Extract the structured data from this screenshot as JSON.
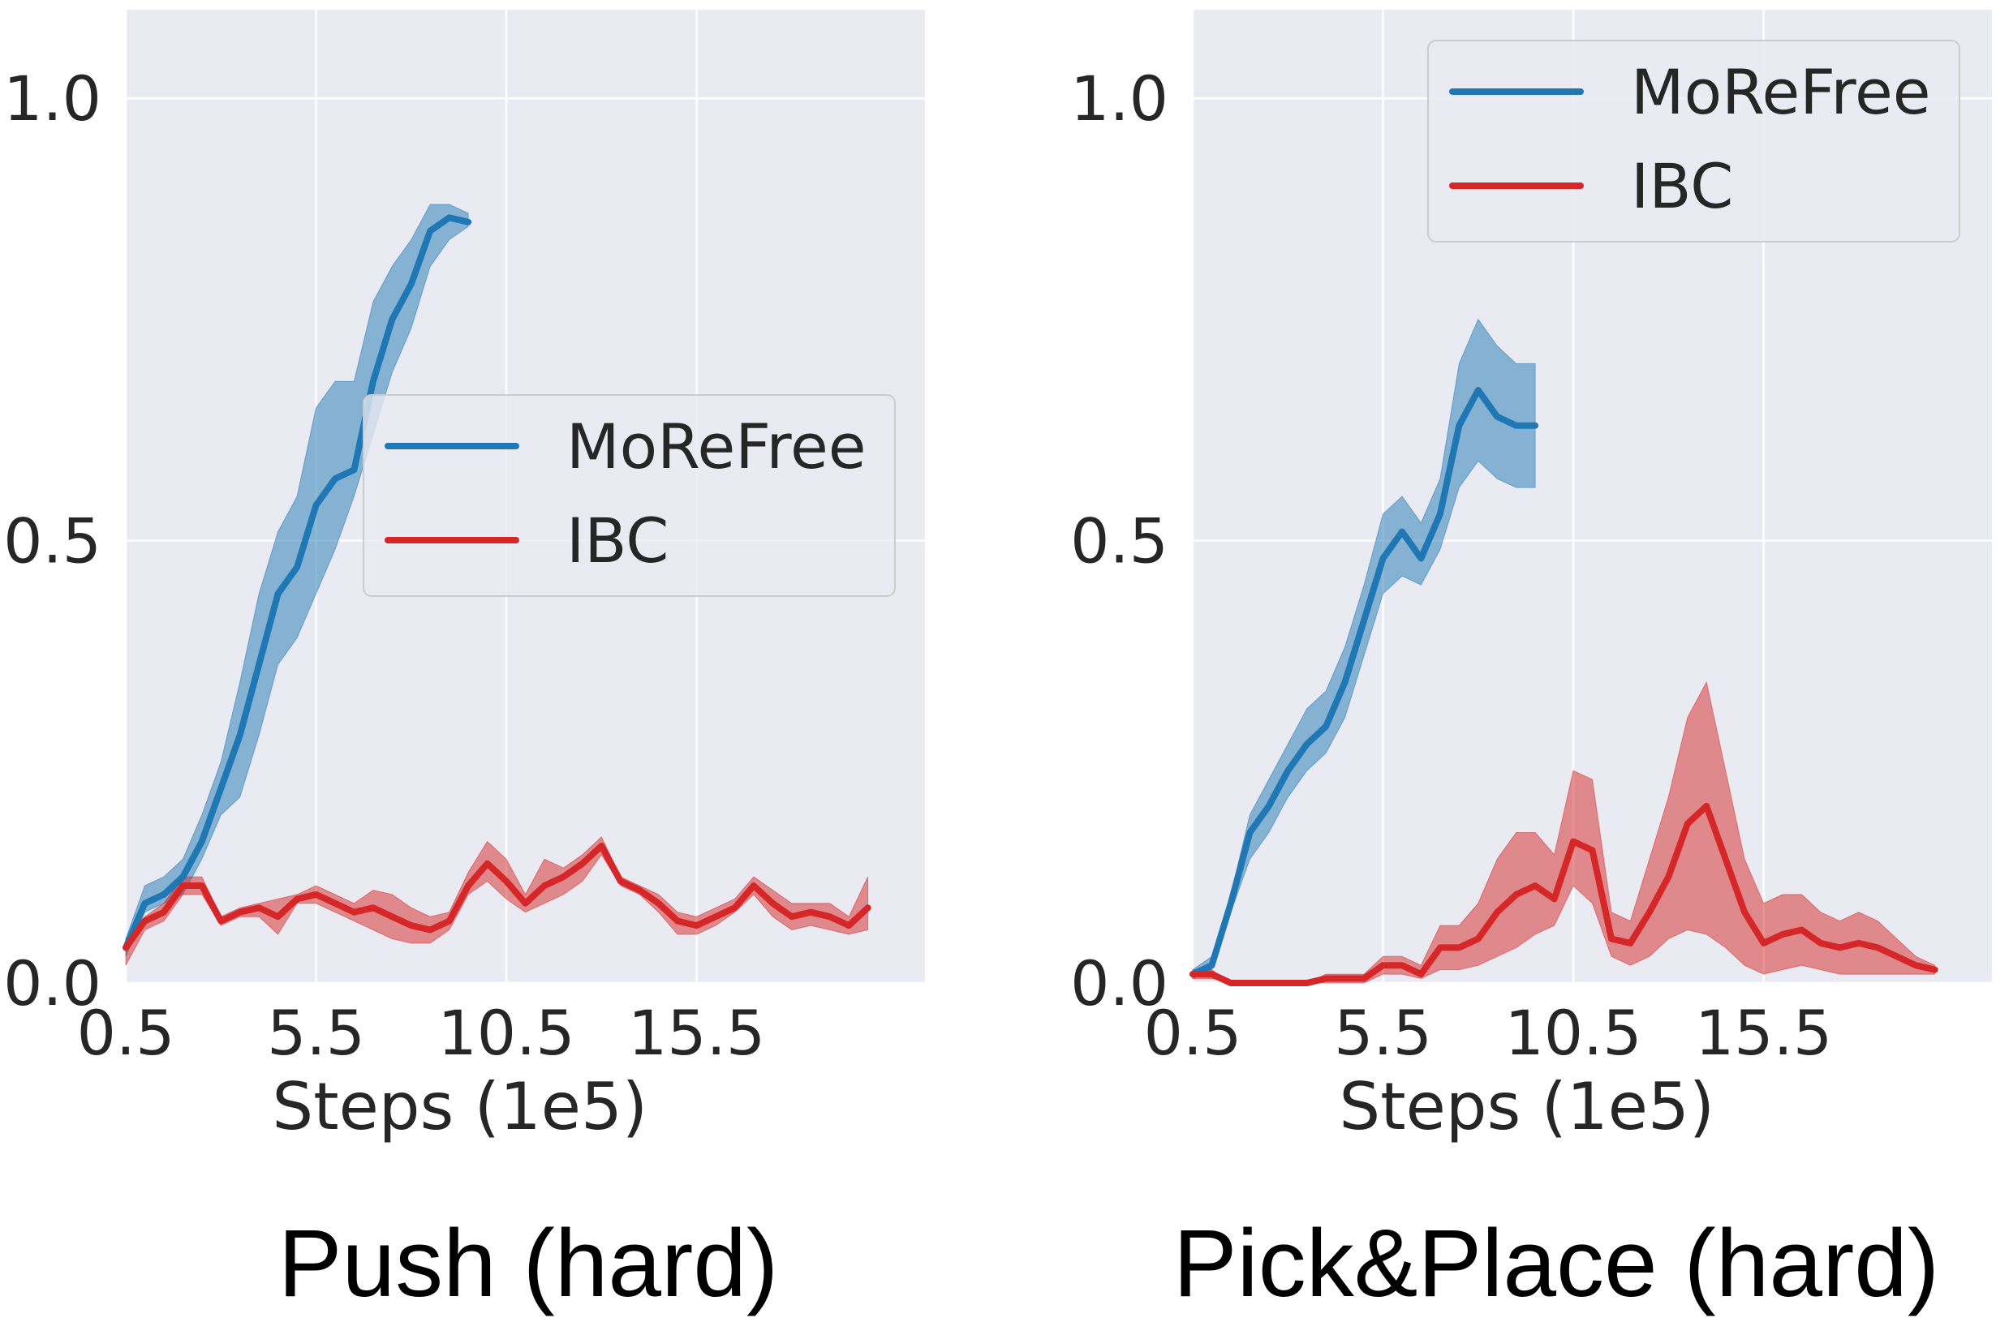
{
  "chart_data": [
    {
      "type": "line",
      "caption": "Push (hard)",
      "xlabel": "Steps (1e5)",
      "ylabel": "",
      "xlim": [
        0.5,
        21.5
      ],
      "ylim": [
        0.0,
        1.1
      ],
      "xticks": [
        0.5,
        5.5,
        10.5,
        15.5
      ],
      "xtick_labels": [
        "0.5",
        "5.5",
        "10.5",
        "15.5"
      ],
      "yticks": [
        0.0,
        0.5,
        1.0
      ],
      "ytick_labels": [
        "0.0",
        "0.5",
        "1.0"
      ],
      "grid": true,
      "legend": {
        "entries": [
          "MoReFree",
          "IBC"
        ],
        "placement": "center-right"
      },
      "series": [
        {
          "name": "MoReFree",
          "color": "#1f77b4",
          "x": [
            0.5,
            1.0,
            1.5,
            2.0,
            2.5,
            3.0,
            3.5,
            4.0,
            4.5,
            5.0,
            5.5,
            6.0,
            6.5,
            7.0,
            7.5,
            8.0,
            8.5,
            9.0,
            9.5
          ],
          "y": [
            0.04,
            0.09,
            0.1,
            0.12,
            0.16,
            0.22,
            0.28,
            0.36,
            0.44,
            0.47,
            0.54,
            0.57,
            0.58,
            0.68,
            0.75,
            0.79,
            0.85,
            0.865,
            0.86
          ],
          "lower": [
            0.03,
            0.08,
            0.09,
            0.1,
            0.14,
            0.19,
            0.21,
            0.28,
            0.36,
            0.39,
            0.44,
            0.49,
            0.55,
            0.62,
            0.69,
            0.74,
            0.81,
            0.84,
            0.855
          ],
          "upper": [
            0.05,
            0.11,
            0.12,
            0.14,
            0.19,
            0.25,
            0.34,
            0.44,
            0.51,
            0.55,
            0.65,
            0.68,
            0.68,
            0.77,
            0.81,
            0.84,
            0.88,
            0.88,
            0.87
          ]
        },
        {
          "name": "IBC",
          "color": "#d62728",
          "x": [
            0.5,
            1.0,
            1.5,
            2.0,
            2.5,
            3.0,
            3.5,
            4.0,
            4.5,
            5.0,
            5.5,
            6.0,
            6.5,
            7.0,
            7.5,
            8.0,
            8.5,
            9.0,
            9.5,
            10.0,
            10.5,
            11.0,
            11.5,
            12.0,
            12.5,
            13.0,
            13.5,
            14.0,
            14.5,
            15.0,
            15.5,
            16.0,
            16.5,
            17.0,
            17.5,
            18.0,
            18.5,
            19.0,
            19.5,
            20.0
          ],
          "y": [
            0.04,
            0.07,
            0.08,
            0.11,
            0.11,
            0.07,
            0.08,
            0.085,
            0.075,
            0.095,
            0.1,
            0.09,
            0.08,
            0.085,
            0.075,
            0.065,
            0.06,
            0.07,
            0.11,
            0.135,
            0.115,
            0.09,
            0.11,
            0.12,
            0.135,
            0.155,
            0.115,
            0.105,
            0.09,
            0.07,
            0.065,
            0.075,
            0.085,
            0.11,
            0.09,
            0.075,
            0.08,
            0.075,
            0.065,
            0.085
          ],
          "lower": [
            0.02,
            0.06,
            0.07,
            0.1,
            0.1,
            0.065,
            0.075,
            0.075,
            0.055,
            0.09,
            0.09,
            0.08,
            0.07,
            0.06,
            0.05,
            0.045,
            0.045,
            0.06,
            0.1,
            0.115,
            0.095,
            0.08,
            0.09,
            0.1,
            0.115,
            0.145,
            0.11,
            0.1,
            0.08,
            0.055,
            0.055,
            0.065,
            0.08,
            0.1,
            0.075,
            0.06,
            0.065,
            0.06,
            0.055,
            0.06
          ],
          "upper": [
            0.05,
            0.075,
            0.09,
            0.12,
            0.12,
            0.075,
            0.085,
            0.09,
            0.095,
            0.1,
            0.11,
            0.1,
            0.09,
            0.105,
            0.1,
            0.085,
            0.075,
            0.08,
            0.125,
            0.16,
            0.14,
            0.1,
            0.14,
            0.13,
            0.145,
            0.165,
            0.12,
            0.11,
            0.1,
            0.08,
            0.075,
            0.085,
            0.095,
            0.12,
            0.105,
            0.09,
            0.09,
            0.09,
            0.075,
            0.12
          ]
        }
      ]
    },
    {
      "type": "line",
      "caption": "Pick&Place (hard)",
      "xlabel": "Steps (1e5)",
      "ylabel": "",
      "xlim": [
        0.5,
        21.5
      ],
      "ylim": [
        0.0,
        1.1
      ],
      "xticks": [
        0.5,
        5.5,
        10.5,
        15.5
      ],
      "xtick_labels": [
        "0.5",
        "5.5",
        "10.5",
        "15.5"
      ],
      "yticks": [
        0.0,
        0.5,
        1.0
      ],
      "ytick_labels": [
        "0.0",
        "0.5",
        "1.0"
      ],
      "grid": true,
      "legend": {
        "entries": [
          "MoReFree",
          "IBC"
        ],
        "placement": "top-right"
      },
      "series": [
        {
          "name": "MoReFree",
          "color": "#1f77b4",
          "x": [
            0.5,
            1.0,
            1.5,
            2.0,
            2.5,
            3.0,
            3.5,
            4.0,
            4.5,
            5.0,
            5.5,
            6.0,
            6.5,
            7.0,
            7.5,
            8.0,
            8.5,
            9.0,
            9.5
          ],
          "y": [
            0.01,
            0.02,
            0.09,
            0.17,
            0.2,
            0.24,
            0.27,
            0.29,
            0.34,
            0.41,
            0.48,
            0.51,
            0.48,
            0.53,
            0.63,
            0.67,
            0.64,
            0.63,
            0.63
          ],
          "lower": [
            0.005,
            0.015,
            0.08,
            0.14,
            0.17,
            0.21,
            0.24,
            0.26,
            0.3,
            0.37,
            0.44,
            0.46,
            0.45,
            0.49,
            0.56,
            0.59,
            0.57,
            0.56,
            0.56
          ],
          "upper": [
            0.015,
            0.03,
            0.1,
            0.19,
            0.23,
            0.27,
            0.31,
            0.33,
            0.38,
            0.45,
            0.53,
            0.55,
            0.52,
            0.57,
            0.7,
            0.75,
            0.72,
            0.7,
            0.7
          ]
        },
        {
          "name": "IBC",
          "color": "#d62728",
          "x": [
            0.5,
            1.0,
            1.5,
            2.0,
            2.5,
            3.0,
            3.5,
            4.0,
            4.5,
            5.0,
            5.5,
            6.0,
            6.5,
            7.0,
            7.5,
            8.0,
            8.5,
            9.0,
            9.5,
            10.0,
            10.5,
            11.0,
            11.5,
            12.0,
            12.5,
            13.0,
            13.5,
            14.0,
            14.5,
            15.0,
            15.5,
            16.0,
            16.5,
            17.0,
            17.5,
            18.0,
            18.5,
            19.0,
            19.5,
            20.0
          ],
          "y": [
            0.01,
            0.01,
            0.0,
            0.0,
            0.0,
            0.0,
            0.0,
            0.005,
            0.005,
            0.005,
            0.02,
            0.02,
            0.01,
            0.04,
            0.04,
            0.05,
            0.08,
            0.1,
            0.11,
            0.095,
            0.16,
            0.15,
            0.05,
            0.045,
            0.08,
            0.12,
            0.18,
            0.2,
            0.14,
            0.08,
            0.045,
            0.055,
            0.06,
            0.045,
            0.04,
            0.045,
            0.04,
            0.03,
            0.02,
            0.015
          ],
          "lower": [
            0.005,
            0.005,
            0.0,
            0.0,
            0.0,
            0.0,
            0.0,
            0.0,
            0.0,
            0.0,
            0.01,
            0.01,
            0.005,
            0.015,
            0.015,
            0.02,
            0.03,
            0.04,
            0.055,
            0.065,
            0.11,
            0.09,
            0.03,
            0.02,
            0.03,
            0.05,
            0.06,
            0.055,
            0.04,
            0.02,
            0.01,
            0.015,
            0.02,
            0.015,
            0.01,
            0.01,
            0.01,
            0.01,
            0.01,
            0.01
          ],
          "upper": [
            0.015,
            0.015,
            0.0,
            0.0,
            0.0,
            0.0,
            0.0,
            0.01,
            0.01,
            0.01,
            0.03,
            0.03,
            0.02,
            0.065,
            0.065,
            0.09,
            0.14,
            0.17,
            0.17,
            0.145,
            0.24,
            0.23,
            0.08,
            0.07,
            0.14,
            0.21,
            0.3,
            0.34,
            0.24,
            0.14,
            0.09,
            0.1,
            0.1,
            0.08,
            0.07,
            0.08,
            0.07,
            0.05,
            0.03,
            0.02
          ]
        }
      ]
    }
  ]
}
